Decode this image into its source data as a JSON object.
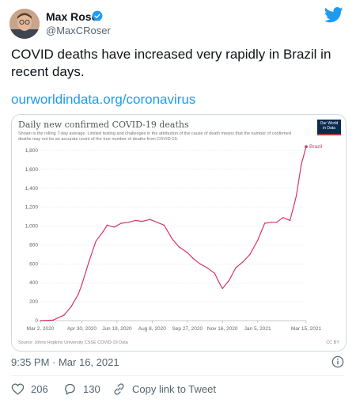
{
  "tweet": {
    "author_name": "Max Roser",
    "author_handle": "@MaxCRoser",
    "text": "COVID deaths have increased very rapidly in Brazil in recent days.",
    "link": "ourworldindata.org/coronavirus",
    "timestamp": "9:35 PM · Mar 16, 2021",
    "likes": "206",
    "replies": "130",
    "copy_link_label": "Copy link to Tweet"
  },
  "icons": {
    "verified": "verified-badge-icon",
    "twitter": "twitter-bird-icon",
    "info": "info-icon",
    "like": "heart-icon",
    "reply": "reply-icon",
    "share": "link-icon"
  },
  "colors": {
    "link": "#1d9bf0",
    "series": "#d6336c",
    "owid_bg": "#0b2a4f"
  },
  "chart_data": {
    "type": "line",
    "title": "Daily new confirmed COVID-19 deaths",
    "subtitle": "Shown is the rolling 7-day average. Limited testing and challenges in the attribution of the cause of death means that the number of confirmed deaths may not be an accurate count of the true number of deaths from COVID-19.",
    "logo_text": "Our World in Data",
    "source": "Source: Johns Hopkins University CSSE COVID-19 Data",
    "license": "CC BY",
    "y_ticks": [
      "0",
      "200",
      "400",
      "600",
      "800",
      "1,000",
      "1,200",
      "1,400",
      "1,600",
      "1,800"
    ],
    "x_ticks": [
      "Mar 2, 2020",
      "Apr 30, 2020",
      "Jun 19, 2020",
      "Aug 8, 2020",
      "Sep 27, 2020",
      "Nov 16, 2020",
      "Jan 5, 2021",
      "Mar 15, 2021"
    ],
    "ylim": [
      0,
      1800
    ],
    "grid": true,
    "series": [
      {
        "name": "Brazil",
        "x": [
          "2020-03-02",
          "2020-03-20",
          "2020-04-05",
          "2020-04-15",
          "2020-04-25",
          "2020-04-30",
          "2020-05-10",
          "2020-05-20",
          "2020-05-31",
          "2020-06-05",
          "2020-06-15",
          "2020-06-25",
          "2020-07-05",
          "2020-07-15",
          "2020-07-25",
          "2020-08-05",
          "2020-08-15",
          "2020-08-25",
          "2020-09-05",
          "2020-09-15",
          "2020-09-27",
          "2020-10-05",
          "2020-10-15",
          "2020-10-25",
          "2020-11-05",
          "2020-11-10",
          "2020-11-16",
          "2020-11-25",
          "2020-12-05",
          "2020-12-15",
          "2020-12-25",
          "2021-01-05",
          "2021-01-15",
          "2021-01-25",
          "2021-02-01",
          "2021-02-10",
          "2021-02-20",
          "2021-03-01",
          "2021-03-08",
          "2021-03-15"
        ],
        "values": [
          0,
          5,
          60,
          150,
          280,
          380,
          620,
          840,
          950,
          1010,
          990,
          1030,
          1040,
          1060,
          1050,
          1070,
          1040,
          1010,
          870,
          780,
          720,
          660,
          600,
          560,
          500,
          420,
          340,
          420,
          560,
          620,
          700,
          850,
          1030,
          1040,
          1040,
          1090,
          1060,
          1320,
          1650,
          1840
        ]
      }
    ]
  }
}
